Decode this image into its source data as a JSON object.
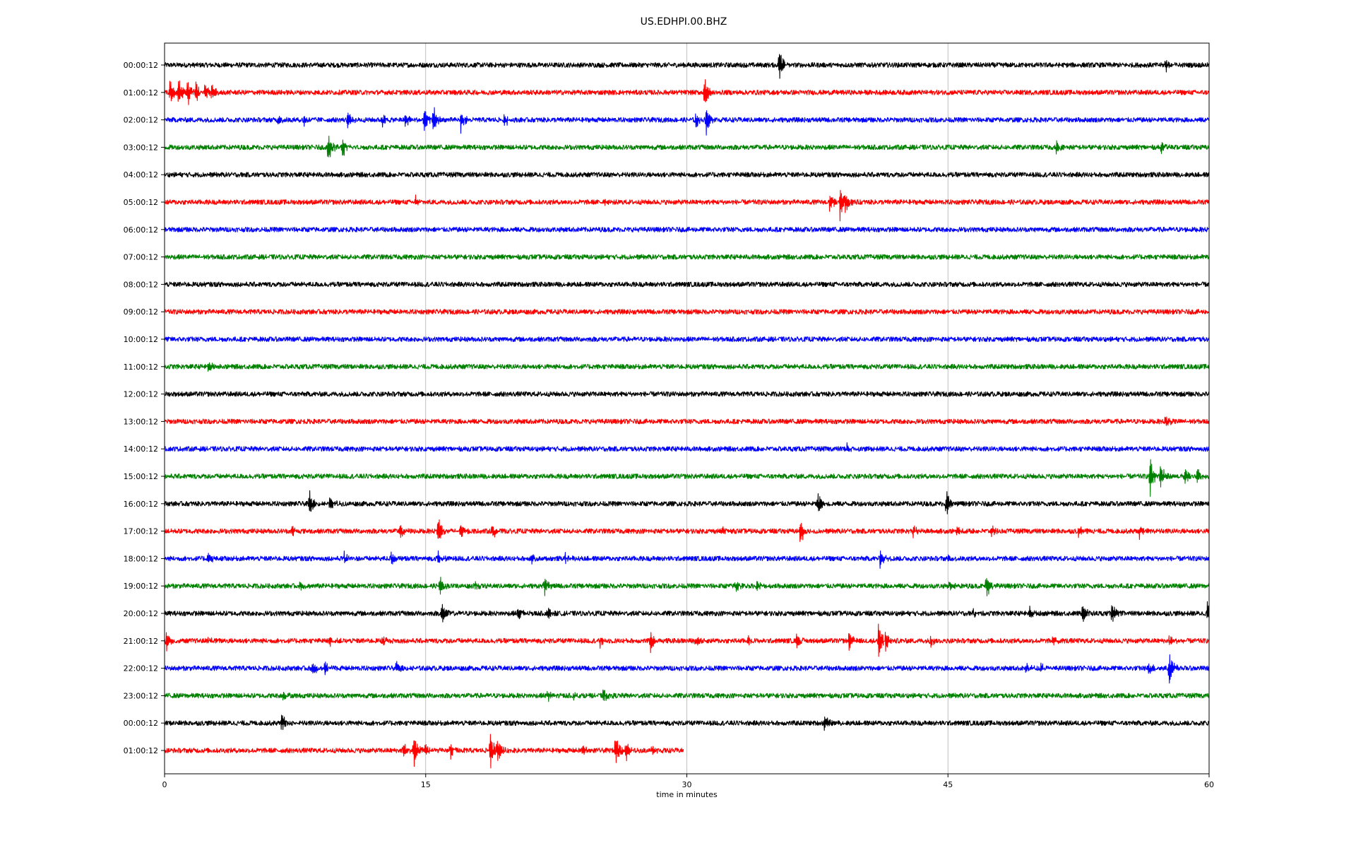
{
  "chart_data": {
    "type": "line",
    "title": "US.EDHPI.00.BHZ",
    "xlabel": "time in minutes",
    "ylabel": "",
    "xlim": [
      0,
      60
    ],
    "xticks": [
      0,
      15,
      30,
      45,
      60
    ],
    "grid": "vertical at 15-minute ticks",
    "legend": "none",
    "colors": [
      "#000000",
      "#ff0000",
      "#0000ff",
      "#008000"
    ],
    "noise_amplitude": 0.1,
    "series": [
      {
        "label": "00:00:12",
        "x_end": 60,
        "events": [
          {
            "x": 35.3,
            "amp": 1.0
          },
          {
            "x": 57.5,
            "amp": 0.3
          }
        ]
      },
      {
        "label": "01:00:12",
        "x_end": 60,
        "events": [
          {
            "x": 0.3,
            "amp": 0.6
          },
          {
            "x": 0.8,
            "amp": 1.0
          },
          {
            "x": 1.3,
            "amp": 0.8
          },
          {
            "x": 1.8,
            "amp": 0.6
          },
          {
            "x": 2.3,
            "amp": 0.5
          },
          {
            "x": 2.7,
            "amp": 0.5
          },
          {
            "x": 31.0,
            "amp": 0.9
          }
        ]
      },
      {
        "label": "02:00:12",
        "x_end": 60,
        "events": [
          {
            "x": 6.5,
            "amp": 0.3
          },
          {
            "x": 8.0,
            "amp": 0.3
          },
          {
            "x": 10.5,
            "amp": 0.5
          },
          {
            "x": 12.5,
            "amp": 0.4
          },
          {
            "x": 13.8,
            "amp": 0.5
          },
          {
            "x": 14.9,
            "amp": 0.8
          },
          {
            "x": 15.4,
            "amp": 0.9
          },
          {
            "x": 17.0,
            "amp": 0.7
          },
          {
            "x": 19.5,
            "amp": 0.4
          },
          {
            "x": 30.5,
            "amp": 0.5
          },
          {
            "x": 31.1,
            "amp": 0.9
          }
        ]
      },
      {
        "label": "03:00:12",
        "x_end": 60,
        "events": [
          {
            "x": 9.4,
            "amp": 0.8
          },
          {
            "x": 10.2,
            "amp": 0.6
          },
          {
            "x": 51.2,
            "amp": 0.3
          },
          {
            "x": 57.2,
            "amp": 0.4
          }
        ]
      },
      {
        "label": "04:00:12",
        "x_end": 60,
        "events": []
      },
      {
        "label": "05:00:12",
        "x_end": 60,
        "events": [
          {
            "x": 14.4,
            "amp": 0.3
          },
          {
            "x": 25.2,
            "amp": 0.3
          },
          {
            "x": 38.2,
            "amp": 0.5
          },
          {
            "x": 38.8,
            "amp": 1.0
          },
          {
            "x": 39.1,
            "amp": 0.6
          }
        ]
      },
      {
        "label": "06:00:12",
        "x_end": 60,
        "events": []
      },
      {
        "label": "07:00:12",
        "x_end": 60,
        "events": []
      },
      {
        "label": "08:00:12",
        "x_end": 60,
        "events": []
      },
      {
        "label": "09:00:12",
        "x_end": 60,
        "events": []
      },
      {
        "label": "10:00:12",
        "x_end": 60,
        "events": []
      },
      {
        "label": "11:00:12",
        "x_end": 60,
        "events": [
          {
            "x": 2.5,
            "amp": 0.3
          }
        ]
      },
      {
        "label": "12:00:12",
        "x_end": 60,
        "events": []
      },
      {
        "label": "13:00:12",
        "x_end": 60,
        "events": [
          {
            "x": 57.5,
            "amp": 0.3
          }
        ]
      },
      {
        "label": "14:00:12",
        "x_end": 60,
        "events": [
          {
            "x": 39.2,
            "amp": 0.2
          }
        ]
      },
      {
        "label": "15:00:12",
        "x_end": 60,
        "events": [
          {
            "x": 56.6,
            "amp": 1.0
          },
          {
            "x": 57.2,
            "amp": 0.7
          },
          {
            "x": 58.6,
            "amp": 0.4
          },
          {
            "x": 59.3,
            "amp": 0.5
          }
        ]
      },
      {
        "label": "16:00:12",
        "x_end": 60,
        "events": [
          {
            "x": 8.3,
            "amp": 0.7
          },
          {
            "x": 9.5,
            "amp": 0.5
          },
          {
            "x": 37.5,
            "amp": 0.6
          },
          {
            "x": 44.9,
            "amp": 0.8
          }
        ]
      },
      {
        "label": "17:00:12",
        "x_end": 60,
        "events": [
          {
            "x": 7.3,
            "amp": 0.3
          },
          {
            "x": 13.5,
            "amp": 0.5
          },
          {
            "x": 15.7,
            "amp": 0.8
          },
          {
            "x": 17.0,
            "amp": 0.5
          },
          {
            "x": 18.8,
            "amp": 0.4
          },
          {
            "x": 32.0,
            "amp": 0.2
          },
          {
            "x": 36.5,
            "amp": 0.7
          },
          {
            "x": 43.0,
            "amp": 0.3
          },
          {
            "x": 45.5,
            "amp": 0.3
          },
          {
            "x": 47.5,
            "amp": 0.3
          },
          {
            "x": 52.5,
            "amp": 0.3
          },
          {
            "x": 56.0,
            "amp": 0.3
          }
        ]
      },
      {
        "label": "18:00:12",
        "x_end": 60,
        "events": [
          {
            "x": 2.5,
            "amp": 0.3
          },
          {
            "x": 10.3,
            "amp": 0.3
          },
          {
            "x": 13.0,
            "amp": 0.4
          },
          {
            "x": 15.7,
            "amp": 0.4
          },
          {
            "x": 21.0,
            "amp": 0.3
          },
          {
            "x": 23.0,
            "amp": 0.3
          },
          {
            "x": 41.1,
            "amp": 0.5
          },
          {
            "x": 45.0,
            "amp": 0.3
          }
        ]
      },
      {
        "label": "19:00:12",
        "x_end": 60,
        "events": [
          {
            "x": 7.7,
            "amp": 0.3
          },
          {
            "x": 15.8,
            "amp": 0.5
          },
          {
            "x": 17.8,
            "amp": 0.3
          },
          {
            "x": 21.8,
            "amp": 0.5
          },
          {
            "x": 32.8,
            "amp": 0.3
          },
          {
            "x": 34.0,
            "amp": 0.3
          },
          {
            "x": 45.1,
            "amp": 0.3
          },
          {
            "x": 47.2,
            "amp": 0.7
          }
        ]
      },
      {
        "label": "20:00:12",
        "x_end": 60,
        "events": [
          {
            "x": 15.9,
            "amp": 0.6
          },
          {
            "x": 20.3,
            "amp": 0.4
          },
          {
            "x": 22.0,
            "amp": 0.3
          },
          {
            "x": 46.4,
            "amp": 0.3
          },
          {
            "x": 49.7,
            "amp": 0.3
          },
          {
            "x": 52.7,
            "amp": 0.6
          },
          {
            "x": 54.4,
            "amp": 0.6
          },
          {
            "x": 59.9,
            "amp": 0.6
          }
        ]
      },
      {
        "label": "21:00:12",
        "x_end": 60,
        "events": [
          {
            "x": 0.1,
            "amp": 0.5
          },
          {
            "x": 2.5,
            "amp": 0.2
          },
          {
            "x": 9.5,
            "amp": 0.3
          },
          {
            "x": 12.5,
            "amp": 0.3
          },
          {
            "x": 25.0,
            "amp": 0.3
          },
          {
            "x": 27.9,
            "amp": 0.6
          },
          {
            "x": 30.5,
            "amp": 0.3
          },
          {
            "x": 33.5,
            "amp": 0.3
          },
          {
            "x": 36.3,
            "amp": 0.3
          },
          {
            "x": 39.3,
            "amp": 0.6
          },
          {
            "x": 41.0,
            "amp": 1.0
          },
          {
            "x": 41.4,
            "amp": 0.6
          },
          {
            "x": 44.0,
            "amp": 0.3
          },
          {
            "x": 51.0,
            "amp": 0.3
          },
          {
            "x": 57.7,
            "amp": 0.3
          }
        ]
      },
      {
        "label": "22:00:12",
        "x_end": 60,
        "events": [
          {
            "x": 8.5,
            "amp": 0.4
          },
          {
            "x": 9.2,
            "amp": 0.4
          },
          {
            "x": 13.3,
            "amp": 0.4
          },
          {
            "x": 49.5,
            "amp": 0.3
          },
          {
            "x": 50.3,
            "amp": 0.3
          },
          {
            "x": 56.5,
            "amp": 0.4
          },
          {
            "x": 57.7,
            "amp": 1.0
          }
        ]
      },
      {
        "label": "23:00:12",
        "x_end": 60,
        "events": [
          {
            "x": 6.8,
            "amp": 0.3
          },
          {
            "x": 22.0,
            "amp": 0.3
          },
          {
            "x": 23.5,
            "amp": 0.3
          },
          {
            "x": 25.2,
            "amp": 0.5
          }
        ]
      },
      {
        "label": "00:00:12",
        "x_end": 60,
        "events": [
          {
            "x": 6.7,
            "amp": 0.5
          },
          {
            "x": 37.9,
            "amp": 0.4
          }
        ]
      },
      {
        "label": "01:00:12",
        "x_end": 29.8,
        "events": [
          {
            "x": 13.7,
            "amp": 0.4
          },
          {
            "x": 14.3,
            "amp": 0.9
          },
          {
            "x": 15.0,
            "amp": 0.4
          },
          {
            "x": 16.4,
            "amp": 0.4
          },
          {
            "x": 18.7,
            "amp": 1.0
          },
          {
            "x": 19.1,
            "amp": 0.8
          },
          {
            "x": 24.0,
            "amp": 0.3
          },
          {
            "x": 25.9,
            "amp": 1.0
          },
          {
            "x": 26.5,
            "amp": 0.5
          },
          {
            "x": 28.0,
            "amp": 0.3
          }
        ]
      }
    ]
  }
}
